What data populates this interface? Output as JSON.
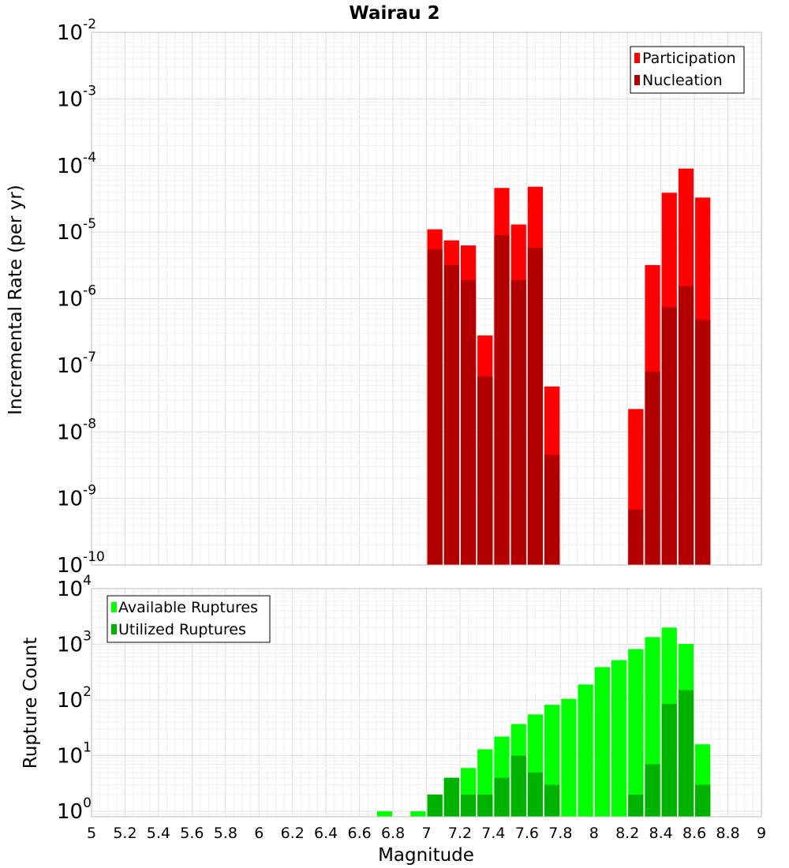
{
  "chart_data": [
    {
      "type": "bar",
      "title": "Wairau 2",
      "xlabel": "",
      "ylabel": "Incremental Rate (per yr)",
      "y_scale": "log",
      "ylim": [
        1e-10,
        0.01
      ],
      "xlim": [
        5,
        9
      ],
      "grid": true,
      "legend_position": "top-right",
      "overlay": true,
      "x": [
        7.05,
        7.15,
        7.25,
        7.35,
        7.45,
        7.55,
        7.65,
        7.75,
        8.25,
        8.35,
        8.45,
        8.55,
        8.65
      ],
      "y_ticks": [
        {
          "base": "10",
          "exp": "-10",
          "value": 1e-10
        },
        {
          "base": "10",
          "exp": "-9",
          "value": 1e-09
        },
        {
          "base": "10",
          "exp": "-8",
          "value": 1e-08
        },
        {
          "base": "10",
          "exp": "-7",
          "value": 1e-07
        },
        {
          "base": "10",
          "exp": "-6",
          "value": 1e-06
        },
        {
          "base": "10",
          "exp": "-5",
          "value": 1e-05
        },
        {
          "base": "10",
          "exp": "-4",
          "value": 0.0001
        },
        {
          "base": "10",
          "exp": "-3",
          "value": 0.001
        },
        {
          "base": "10",
          "exp": "-2",
          "value": 0.01
        }
      ],
      "series": [
        {
          "name": "Participation",
          "color": "#ff0000",
          "values": [
            1.1e-05,
            7.5e-06,
            6.3e-06,
            2.8e-07,
            4.6e-05,
            1.3e-05,
            4.8e-05,
            4.8e-08,
            2.2e-08,
            3.2e-06,
            3.9e-05,
            9e-05,
            3.3e-05
          ]
        },
        {
          "name": "Nucleation",
          "color": "#b20000",
          "values": [
            5.5e-06,
            3.2e-06,
            1.9e-06,
            6.8e-08,
            9e-06,
            1.9e-06,
            5.8e-06,
            4.5e-09,
            6.8e-10,
            8e-08,
            7.5e-07,
            1.55e-06,
            4.8e-07
          ]
        }
      ]
    },
    {
      "type": "bar",
      "title": "",
      "xlabel": "Magnitude",
      "ylabel": "Rupture Count",
      "y_scale": "log",
      "ylim": [
        0.8,
        10000
      ],
      "xlim": [
        5,
        9
      ],
      "grid": true,
      "legend_position": "top-left",
      "overlay": true,
      "x": [
        6.75,
        6.95,
        7.05,
        7.15,
        7.25,
        7.35,
        7.45,
        7.55,
        7.65,
        7.75,
        7.85,
        7.95,
        8.05,
        8.15,
        8.25,
        8.35,
        8.45,
        8.55,
        8.65
      ],
      "x_ticks": [
        "5",
        "5.2",
        "5.4",
        "5.6",
        "5.8",
        "6",
        "6.2",
        "6.4",
        "6.6",
        "6.8",
        "7",
        "7.2",
        "7.4",
        "7.6",
        "7.8",
        "8",
        "8.2",
        "8.4",
        "8.6",
        "8.8",
        "9"
      ],
      "y_ticks": [
        {
          "base": "10",
          "exp": "0",
          "value": 1
        },
        {
          "base": "10",
          "exp": "1",
          "value": 10
        },
        {
          "base": "10",
          "exp": "2",
          "value": 100
        },
        {
          "base": "10",
          "exp": "3",
          "value": 1000
        },
        {
          "base": "10",
          "exp": "4",
          "value": 10000
        }
      ],
      "series": [
        {
          "name": "Available Ruptures",
          "color": "#00ff00",
          "values": [
            1,
            1,
            2,
            4,
            6,
            13,
            22,
            37,
            55,
            82,
            105,
            190,
            390,
            520,
            820,
            1350,
            2000,
            1020,
            16
          ]
        },
        {
          "name": "Utilized Ruptures",
          "color": "#00b200",
          "values": [
            0,
            0,
            2,
            4,
            2,
            2,
            4,
            10,
            5,
            3,
            0,
            0,
            0,
            0,
            2,
            7,
            85,
            150,
            3
          ]
        }
      ]
    }
  ]
}
